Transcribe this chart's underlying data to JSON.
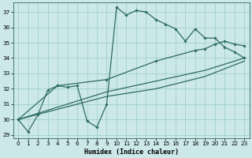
{
  "xlabel": "Humidex (Indice chaleur)",
  "background_color": "#cce8e8",
  "grid_color": "#99cccc",
  "line_color": "#2d6b5e",
  "xlim": [
    -0.5,
    23.5
  ],
  "ylim": [
    28.8,
    37.6
  ],
  "yticks": [
    29,
    30,
    31,
    32,
    33,
    34,
    35,
    36,
    37
  ],
  "xticks": [
    0,
    1,
    2,
    3,
    4,
    5,
    6,
    7,
    8,
    9,
    10,
    11,
    12,
    13,
    14,
    15,
    16,
    17,
    18,
    19,
    20,
    21,
    22,
    23
  ],
  "series": [
    {
      "x": [
        0,
        1,
        2,
        3,
        4,
        5,
        6,
        7,
        8,
        9,
        10,
        11,
        12,
        13,
        14,
        15,
        16,
        17,
        18,
        19,
        20,
        21,
        22,
        23
      ],
      "y": [
        30.0,
        29.2,
        30.3,
        31.9,
        32.2,
        32.1,
        32.2,
        29.9,
        29.5,
        31.0,
        37.3,
        36.8,
        37.1,
        37.0,
        36.5,
        36.2,
        35.9,
        35.1,
        35.9,
        35.3,
        35.3,
        34.7,
        34.4,
        34.0
      ],
      "marker": true,
      "lw": 0.9
    },
    {
      "x": [
        0,
        4,
        9,
        14,
        18,
        19,
        20,
        21,
        22,
        23
      ],
      "y": [
        30.0,
        32.2,
        32.6,
        33.8,
        34.5,
        34.6,
        34.9,
        35.1,
        34.9,
        34.8
      ],
      "marker": true,
      "lw": 0.9
    },
    {
      "x": [
        0,
        9,
        14,
        19,
        23
      ],
      "y": [
        30.0,
        31.8,
        32.5,
        33.2,
        34.0
      ],
      "marker": false,
      "lw": 0.9
    },
    {
      "x": [
        0,
        9,
        14,
        19,
        23
      ],
      "y": [
        30.0,
        31.5,
        32.0,
        32.8,
        33.8
      ],
      "marker": false,
      "lw": 0.9
    }
  ]
}
